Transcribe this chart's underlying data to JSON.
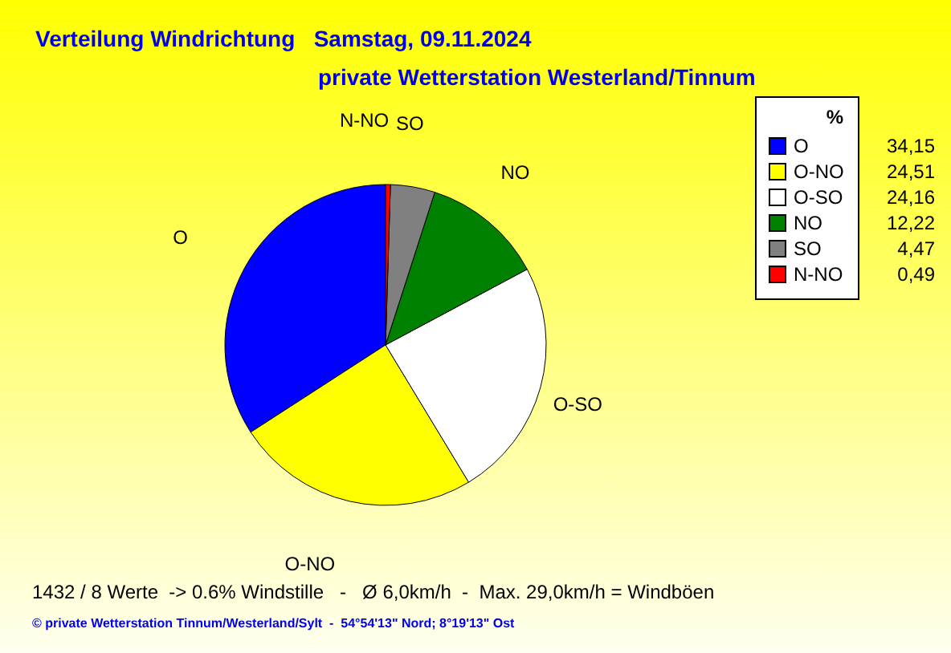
{
  "chart_data": {
    "type": "pie",
    "title": "Verteilung Windrichtung   Samstag, 09.11.2024",
    "subtitle": "private Wetterstation Westerland/Tinnum",
    "legend_title": "%",
    "legend": "top right",
    "categories": [
      "O",
      "O-NO",
      "O-SO",
      "NO",
      "SO",
      "N-NO"
    ],
    "values": [
      34.15,
      24.51,
      24.16,
      12.22,
      4.47,
      0.49
    ],
    "value_labels": [
      "34,15",
      "24,51",
      "24,16",
      "12,22",
      "4,47",
      "0,49"
    ],
    "colors": [
      "#0000ff",
      "#ffff00",
      "#ffffff",
      "#008000",
      "#808080",
      "#ff0000"
    ],
    "annotations": [
      "1432 / 8 Werte  -> 0.6% Windstille   -   Ø 6,0km/h  -  Max. 29,0km/h = Windböen",
      "© private Wetterstation Tinnum/Westerland/Sylt  -  54°54'13\" Nord; 8°19'13\" Ost"
    ]
  }
}
